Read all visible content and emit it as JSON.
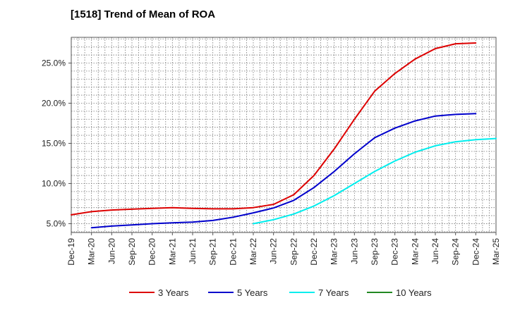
{
  "chart_data": {
    "type": "line",
    "title": "[1518]  Trend of Mean of ROA",
    "xlabel": "",
    "ylabel": "",
    "ylim": [
      3.9,
      28.2
    ],
    "y_ticks": [
      5.0,
      10.0,
      15.0,
      20.0,
      25.0
    ],
    "y_tick_format": "0.0%",
    "x_ticks": [
      "Dec-19",
      "Mar-20",
      "Jun-20",
      "Sep-20",
      "Dec-20",
      "Mar-21",
      "Jun-21",
      "Sep-21",
      "Dec-21",
      "Mar-22",
      "Jun-22",
      "Sep-22",
      "Dec-22",
      "Mar-23",
      "Jun-23",
      "Sep-23",
      "Dec-23",
      "Mar-24",
      "Jun-24",
      "Sep-24",
      "Dec-24",
      "Mar-25"
    ],
    "grid": true,
    "legend_position": "bottom",
    "series": [
      {
        "name": "3 Years",
        "color": "#dd0000",
        "start_index": 0,
        "values": [
          6.1,
          6.5,
          6.7,
          6.8,
          6.9,
          7.0,
          6.9,
          6.85,
          6.85,
          7.0,
          7.4,
          8.6,
          11.0,
          14.3,
          18.0,
          21.5,
          23.7,
          25.5,
          26.8,
          27.4,
          27.5
        ]
      },
      {
        "name": "5 Years",
        "color": "#0000cc",
        "start_index": 1,
        "values": [
          4.5,
          4.7,
          4.85,
          5.0,
          5.1,
          5.2,
          5.4,
          5.8,
          6.35,
          6.95,
          7.9,
          9.5,
          11.5,
          13.7,
          15.7,
          16.9,
          17.8,
          18.4,
          18.6,
          18.7
        ]
      },
      {
        "name": "7 Years",
        "color": "#00eeee",
        "start_index": 9,
        "values": [
          5.0,
          5.5,
          6.2,
          7.2,
          8.5,
          10.0,
          11.5,
          12.8,
          13.9,
          14.7,
          15.2,
          15.45,
          15.6
        ]
      },
      {
        "name": "10 Years",
        "color": "#228822",
        "start_index": 0,
        "values": []
      }
    ]
  }
}
